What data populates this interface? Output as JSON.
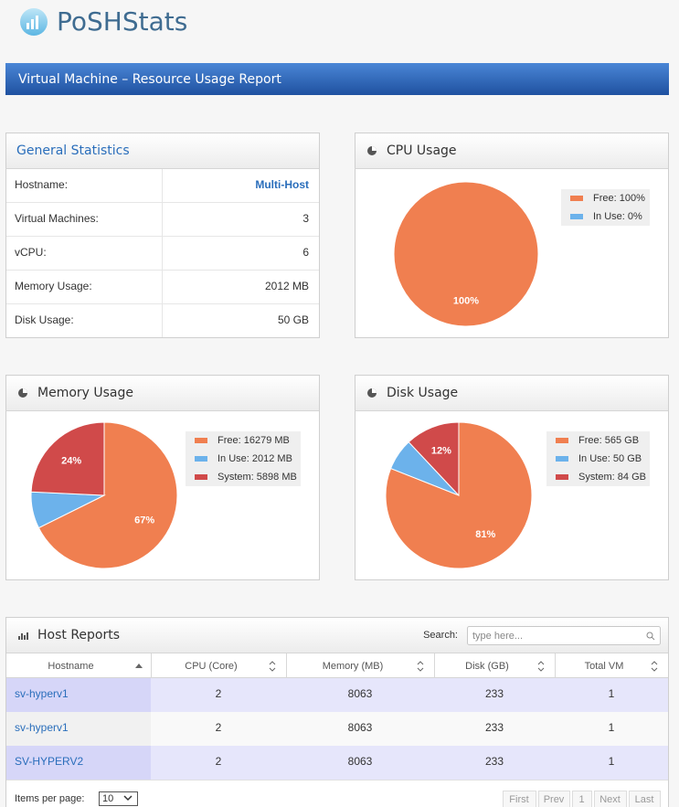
{
  "header": {
    "logo": "PoSHStats",
    "banner": "Virtual Machine – Resource Usage Report"
  },
  "general": {
    "title": "General Statistics",
    "rows": [
      [
        "Hostname:",
        "Multi-Host"
      ],
      [
        "Virtual Machines:",
        "3"
      ],
      [
        "vCPU:",
        "6"
      ],
      [
        "Memory Usage:",
        "2012 MB"
      ],
      [
        "Disk Usage:",
        "50 GB"
      ]
    ]
  },
  "chart_data": [
    {
      "type": "pie",
      "title": "CPU Usage",
      "categories": [
        "Free: 100%",
        "In Use: 0%"
      ],
      "colors": [
        "#f07f50",
        "#6cb2eb"
      ],
      "values": [
        100,
        0
      ],
      "value_labels": [
        "100%",
        null
      ]
    },
    {
      "type": "pie",
      "title": "Memory Usage",
      "categories": [
        "Free: 16279 MB",
        "In Use: 2012 MB",
        "System: 5898 MB"
      ],
      "colors": [
        "#f07f50",
        "#6cb2eb",
        "#d04a4a"
      ],
      "values": [
        67,
        8,
        24
      ],
      "value_labels": [
        "67%",
        null,
        "24%"
      ]
    },
    {
      "type": "pie",
      "title": "Disk Usage",
      "categories": [
        "Free: 565 GB",
        "In Use: 50 GB",
        "System: 84 GB"
      ],
      "colors": [
        "#f07f50",
        "#6cb2eb",
        "#d04a4a"
      ],
      "values": [
        81,
        7,
        12
      ],
      "value_labels": [
        "81%",
        null,
        "12%"
      ]
    }
  ],
  "host_reports": {
    "title": "Host Reports",
    "search_label": "Search:",
    "search_placeholder": "type here...",
    "columns": [
      "Hostname",
      "CPU (Core)",
      "Memory (MB)",
      "Disk (GB)",
      "Total VM"
    ],
    "rows": [
      [
        "sv-hyperv1",
        "2",
        "8063",
        "233",
        "1"
      ],
      [
        "sv-hyperv1",
        "2",
        "8063",
        "233",
        "1"
      ],
      [
        "SV-HYPERV2",
        "2",
        "8063",
        "233",
        "1"
      ]
    ],
    "items_label": "Items per page:",
    "items_value": "10",
    "pager": [
      "First",
      "Prev",
      "1",
      "Next",
      "Last"
    ]
  }
}
